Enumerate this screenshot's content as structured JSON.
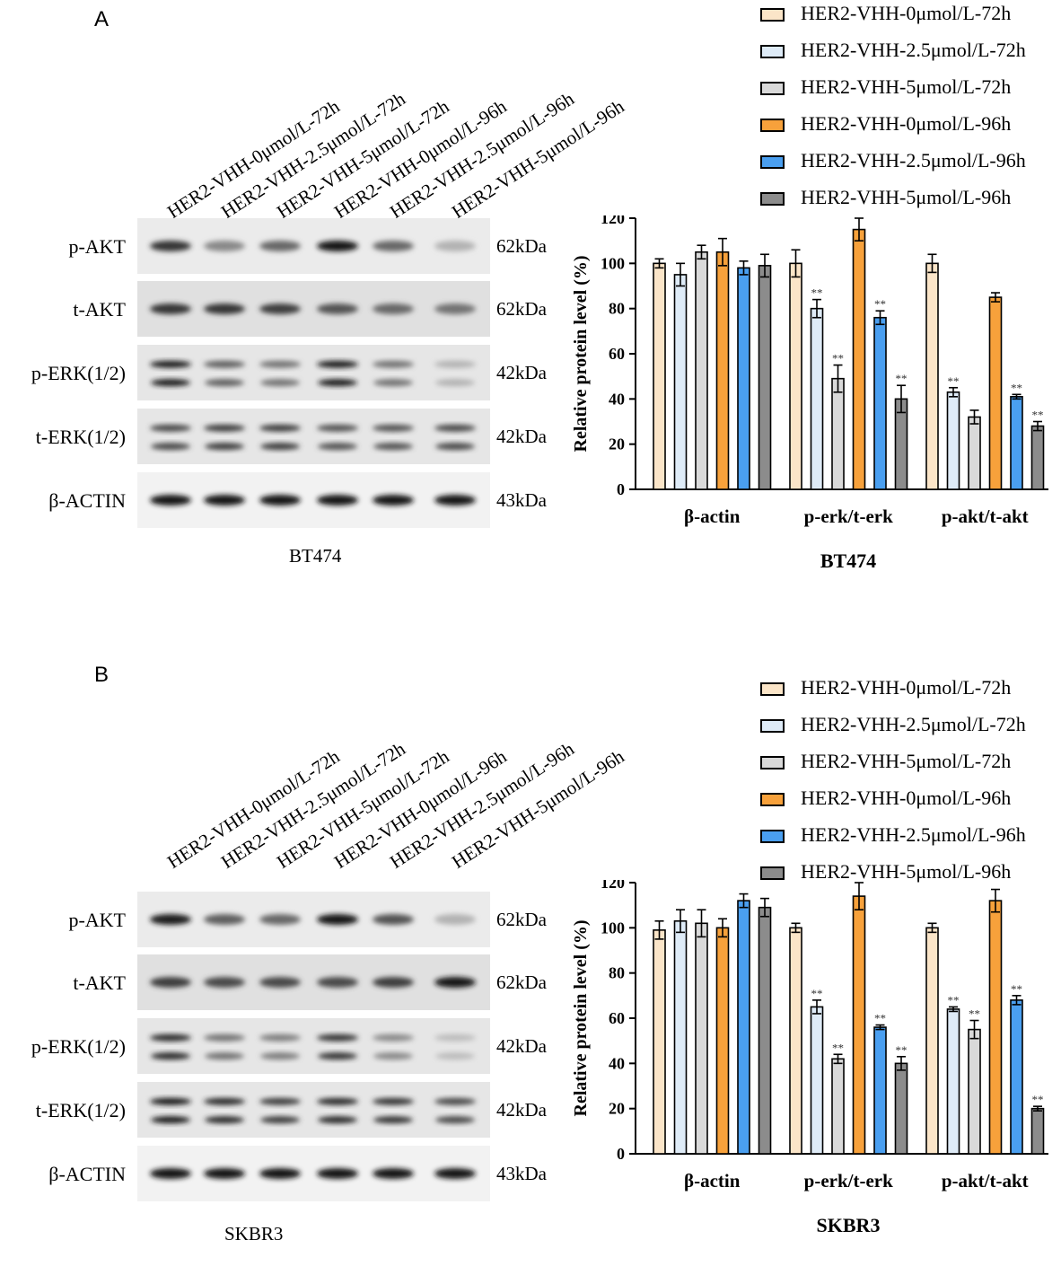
{
  "lane_labels": [
    "HER2-VHH-0μmol/L-72h",
    "HER2-VHH-2.5μmol/L-72h",
    "HER2-VHH-5μmol/L-72h",
    "HER2-VHH-0μmol/L-96h",
    "HER2-VHH-2.5μmol/L-96h",
    "HER2-VHH-5μmol/L-96h"
  ],
  "panels": [
    {
      "letter": "A",
      "cell_line": "BT474",
      "blots": [
        {
          "label": "p-AKT",
          "kda": "62kDa",
          "bands": 1,
          "intensity": [
            0.85,
            0.45,
            0.6,
            1.0,
            0.6,
            0.25
          ]
        },
        {
          "label": "t-AKT",
          "kda": "62kDa",
          "bands": 1,
          "intensity": [
            0.85,
            0.85,
            0.8,
            0.7,
            0.6,
            0.55
          ]
        },
        {
          "label": "p-ERK(1/2)",
          "kda": "42kDa",
          "bands": 2,
          "intensity": [
            0.95,
            0.65,
            0.55,
            0.95,
            0.55,
            0.25
          ]
        },
        {
          "label": "t-ERK(1/2)",
          "kda": "42kDa",
          "bands": 2,
          "intensity": [
            0.75,
            0.8,
            0.8,
            0.7,
            0.7,
            0.75
          ]
        },
        {
          "label": "β-ACTIN",
          "kda": "43kDa",
          "bands": 1,
          "intensity": [
            1.0,
            1.0,
            1.0,
            1.0,
            1.0,
            1.0
          ]
        }
      ]
    },
    {
      "letter": "B",
      "cell_line": "SKBR3",
      "blots": [
        {
          "label": "p-AKT",
          "kda": "62kDa",
          "bands": 1,
          "intensity": [
            0.95,
            0.65,
            0.6,
            1.0,
            0.7,
            0.25
          ]
        },
        {
          "label": "t-AKT",
          "kda": "62kDa",
          "bands": 1,
          "intensity": [
            0.8,
            0.75,
            0.75,
            0.75,
            0.8,
            1.0
          ]
        },
        {
          "label": "p-ERK(1/2)",
          "kda": "42kDa",
          "bands": 2,
          "intensity": [
            0.9,
            0.55,
            0.5,
            0.85,
            0.45,
            0.2
          ]
        },
        {
          "label": "t-ERK(1/2)",
          "kda": "42kDa",
          "bands": 2,
          "intensity": [
            0.95,
            0.9,
            0.8,
            0.9,
            0.85,
            0.75
          ]
        },
        {
          "label": "β-ACTIN",
          "kda": "43kDa",
          "bands": 1,
          "intensity": [
            1.0,
            1.0,
            1.0,
            1.0,
            1.0,
            1.0
          ]
        }
      ]
    }
  ],
  "colors": [
    "#fbe5c8",
    "#deebf7",
    "#d9d9d9",
    "#f7a13b",
    "#4a9ff0",
    "#8c8c8c"
  ],
  "chart_data": [
    {
      "type": "bar",
      "title": "BT474",
      "xlabel": "",
      "ylabel": "Relative protein level (%)",
      "ylim": [
        0,
        120
      ],
      "yticks": [
        0,
        20,
        40,
        60,
        80,
        100,
        120
      ],
      "categories": [
        "β-actin",
        "p-erk/t-erk",
        "p-akt/t-akt"
      ],
      "series": [
        {
          "name": "HER2-VHH-0μmol/L-72h",
          "values": [
            100,
            100,
            100
          ],
          "errors": [
            2,
            6,
            4
          ],
          "sig": [
            "",
            "",
            ""
          ]
        },
        {
          "name": "HER2-VHH-2.5μmol/L-72h",
          "values": [
            95,
            80,
            43
          ],
          "errors": [
            5,
            4,
            2
          ],
          "sig": [
            "",
            "**",
            "**"
          ]
        },
        {
          "name": "HER2-VHH-5μmol/L-72h",
          "values": [
            105,
            49,
            32
          ],
          "errors": [
            3,
            6,
            3
          ],
          "sig": [
            "",
            "**",
            ""
          ]
        },
        {
          "name": "HER2-VHH-0μmol/L-96h",
          "values": [
            105,
            115,
            85
          ],
          "errors": [
            6,
            5,
            2
          ],
          "sig": [
            "",
            "",
            ""
          ]
        },
        {
          "name": "HER2-VHH-2.5μmol/L-96h",
          "values": [
            98,
            76,
            41
          ],
          "errors": [
            3,
            3,
            1
          ],
          "sig": [
            "",
            "**",
            "**"
          ]
        },
        {
          "name": "HER2-VHH-5μmol/L-96h",
          "values": [
            99,
            40,
            28
          ],
          "errors": [
            5,
            6,
            2
          ],
          "sig": [
            "",
            "**",
            "**"
          ]
        }
      ],
      "legend": "top-right"
    },
    {
      "type": "bar",
      "title": "SKBR3",
      "xlabel": "",
      "ylabel": "Relative protein level (%)",
      "ylim": [
        0,
        120
      ],
      "yticks": [
        0,
        20,
        40,
        60,
        80,
        100,
        120
      ],
      "categories": [
        "β-actin",
        "p-erk/t-erk",
        "p-akt/t-akt"
      ],
      "series": [
        {
          "name": "HER2-VHH-0μmol/L-72h",
          "values": [
            99,
            100,
            100
          ],
          "errors": [
            4,
            2,
            2
          ],
          "sig": [
            "",
            "",
            ""
          ]
        },
        {
          "name": "HER2-VHH-2.5μmol/L-72h",
          "values": [
            103,
            65,
            64
          ],
          "errors": [
            5,
            3,
            1
          ],
          "sig": [
            "",
            "**",
            "**"
          ]
        },
        {
          "name": "HER2-VHH-5μmol/L-72h",
          "values": [
            102,
            42,
            55
          ],
          "errors": [
            6,
            2,
            4
          ],
          "sig": [
            "",
            "**",
            "**"
          ]
        },
        {
          "name": "HER2-VHH-0μmol/L-96h",
          "values": [
            100,
            114,
            112
          ],
          "errors": [
            4,
            6,
            5
          ],
          "sig": [
            "",
            "",
            ""
          ]
        },
        {
          "name": "HER2-VHH-2.5μmol/L-96h",
          "values": [
            112,
            56,
            68
          ],
          "errors": [
            3,
            1,
            2
          ],
          "sig": [
            "",
            "**",
            "**"
          ]
        },
        {
          "name": "HER2-VHH-5μmol/L-96h",
          "values": [
            109,
            40,
            20
          ],
          "errors": [
            4,
            3,
            1
          ],
          "sig": [
            "",
            "**",
            "**"
          ]
        }
      ],
      "legend": "top-right"
    }
  ]
}
